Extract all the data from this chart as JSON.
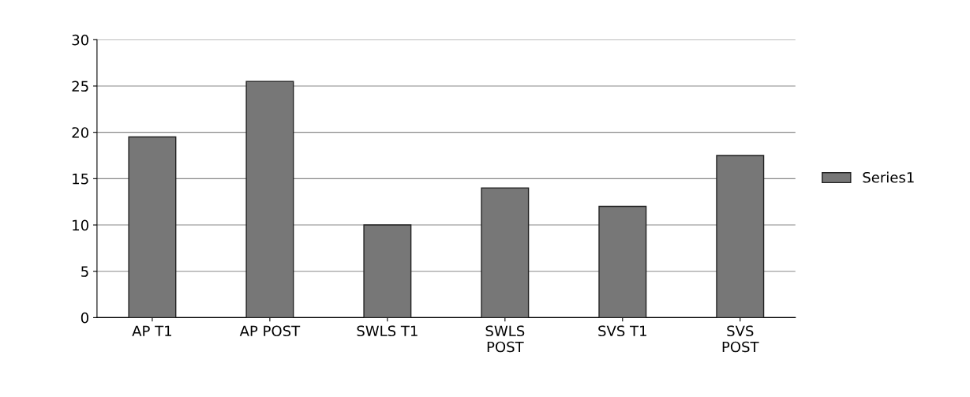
{
  "chart_data": {
    "type": "bar",
    "categories": [
      "AP T1",
      "AP POST",
      "SWLS T1",
      "SWLS\nPOST",
      "SVS T1",
      "SVS\nPOST"
    ],
    "series": [
      {
        "name": "Series1",
        "color": "#777777",
        "values": [
          19.5,
          25.5,
          10,
          14,
          12,
          17.5
        ]
      }
    ],
    "ylim": [
      0,
      30
    ],
    "yticks": [
      0,
      5,
      10,
      15,
      20,
      25,
      30
    ],
    "grid": "y",
    "legend": "right"
  }
}
